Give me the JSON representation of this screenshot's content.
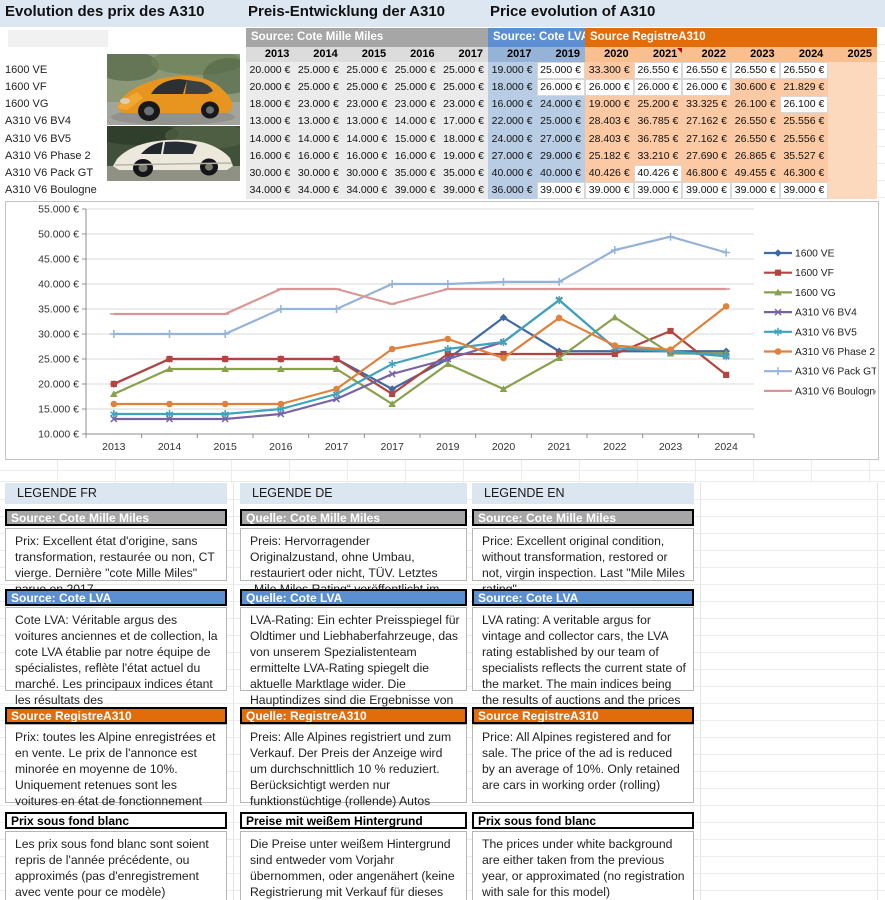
{
  "titles": {
    "fr": "Evolution des prix des A310",
    "de": "Preis-Entwicklung der A310",
    "en": "Price evolution of A310"
  },
  "colors": {
    "title_bar_bg": "#dde7f2",
    "mille_header": "#a6a6a6",
    "mille_year": "#dcdcdc",
    "mille_cell": "#ebebeb",
    "lva_header": "#5c8fd2",
    "lva_year": "#95b3d7",
    "lva_cell": "#b8cce4",
    "registre_header": "#e26b0a",
    "registre_year": "#fabf8f",
    "registre_cell": "#fbc9a3",
    "registre_empty_cell": "#fcd8bd",
    "white_cell": "#ffffff",
    "comment_marker": "#c00000"
  },
  "table": {
    "comment_marker_year": "2021",
    "sections": [
      {
        "id": "mille",
        "label": "Source: Cote Mille Miles",
        "years": [
          "2013",
          "2014",
          "2015",
          "2016",
          "2017"
        ]
      },
      {
        "id": "lva",
        "label": "Source: Cote LVA",
        "years": [
          "2017",
          "2019"
        ]
      },
      {
        "id": "registre",
        "label": "Source RegistreA310",
        "years": [
          "2020",
          "2021",
          "2022",
          "2023",
          "2024",
          "2025"
        ]
      }
    ],
    "rows": [
      {
        "model": "1600 VE",
        "mille": [
          "20.000 €",
          "25.000 €",
          "25.000 €",
          "25.000 €",
          "25.000 €"
        ],
        "lva": [
          "19.000 €",
          "25.000 €"
        ],
        "lva_white": [
          0,
          1
        ],
        "registre": [
          "33.300 €",
          "26.550 €",
          "26.550 €",
          "26.550 €",
          "26.550 €",
          ""
        ],
        "registre_white": [
          0,
          1,
          1,
          1,
          1,
          0
        ]
      },
      {
        "model": "1600 VF",
        "mille": [
          "20.000 €",
          "25.000 €",
          "25.000 €",
          "25.000 €",
          "25.000 €"
        ],
        "lva": [
          "18.000 €",
          "26.000 €"
        ],
        "lva_white": [
          0,
          1
        ],
        "registre": [
          "26.000 €",
          "26.000 €",
          "26.000 €",
          "30.600 €",
          "21.829 €",
          ""
        ],
        "registre_white": [
          1,
          1,
          1,
          0,
          0,
          0
        ]
      },
      {
        "model": "1600 VG",
        "mille": [
          "18.000 €",
          "23.000 €",
          "23.000 €",
          "23.000 €",
          "23.000 €"
        ],
        "lva": [
          "16.000 €",
          "24.000 €"
        ],
        "lva_white": [
          0,
          0
        ],
        "registre": [
          "19.000 €",
          "25.200 €",
          "33.325 €",
          "26.100 €",
          "26.100 €",
          ""
        ],
        "registre_white": [
          0,
          0,
          0,
          0,
          1,
          0
        ]
      },
      {
        "model": "A310 V6 BV4",
        "mille": [
          "13.000 €",
          "13.000 €",
          "13.000 €",
          "14.000 €",
          "17.000 €"
        ],
        "lva": [
          "22.000 €",
          "25.000 €"
        ],
        "lva_white": [
          0,
          0
        ],
        "registre": [
          "28.403 €",
          "36.785 €",
          "27.162 €",
          "26.550 €",
          "25.556 €",
          ""
        ],
        "registre_white": [
          0,
          0,
          0,
          0,
          0,
          0
        ]
      },
      {
        "model": "A310 V6 BV5",
        "mille": [
          "14.000 €",
          "14.000 €",
          "14.000 €",
          "15.000 €",
          "18.000 €"
        ],
        "lva": [
          "24.000 €",
          "27.000 €"
        ],
        "lva_white": [
          0,
          0
        ],
        "registre": [
          "28.403 €",
          "36.785 €",
          "27.162 €",
          "26.550 €",
          "25.556 €",
          ""
        ],
        "registre_white": [
          0,
          0,
          0,
          0,
          0,
          0
        ]
      },
      {
        "model": "A310 V6 Phase 2",
        "mille": [
          "16.000 €",
          "16.000 €",
          "16.000 €",
          "16.000 €",
          "19.000 €"
        ],
        "lva": [
          "27.000 €",
          "29.000 €"
        ],
        "lva_white": [
          0,
          0
        ],
        "registre": [
          "25.182 €",
          "33.210 €",
          "27.690 €",
          "26.865 €",
          "35.527 €",
          ""
        ],
        "registre_white": [
          0,
          0,
          0,
          0,
          0,
          0
        ]
      },
      {
        "model": "A310 V6 Pack GT",
        "mille": [
          "30.000 €",
          "30.000 €",
          "30.000 €",
          "35.000 €",
          "35.000 €"
        ],
        "lva": [
          "40.000 €",
          "40.000 €"
        ],
        "lva_white": [
          0,
          0
        ],
        "registre": [
          "40.426 €",
          "40.426 €",
          "46.800 €",
          "49.455 €",
          "46.300 €",
          ""
        ],
        "registre_white": [
          0,
          1,
          0,
          0,
          0,
          0
        ]
      },
      {
        "model": "A310 V6 Boulogne",
        "mille": [
          "34.000 €",
          "34.000 €",
          "34.000 €",
          "39.000 €",
          "39.000 €"
        ],
        "lva": [
          "36.000 €",
          "39.000 €"
        ],
        "lva_white": [
          0,
          1
        ],
        "registre": [
          "39.000 €",
          "39.000 €",
          "39.000 €",
          "39.000 €",
          "39.000 €",
          ""
        ],
        "registre_white": [
          1,
          1,
          1,
          1,
          1,
          0
        ]
      }
    ]
  },
  "chart_data": {
    "type": "line",
    "x": [
      "2013",
      "2014",
      "2015",
      "2016",
      "2017",
      "2017",
      "2019",
      "2020",
      "2021",
      "2022",
      "2023",
      "2024"
    ],
    "ylim": [
      10000,
      55000
    ],
    "ytick_step": 5000,
    "ytick_format": "#.000 €",
    "grid": true,
    "legend_position": "right",
    "series": [
      {
        "name": "1600 VE",
        "color": "#4169a4",
        "marker": "diamond",
        "values": [
          20000,
          25000,
          25000,
          25000,
          25000,
          19000,
          25000,
          33300,
          26550,
          26550,
          26550,
          26550
        ]
      },
      {
        "name": "1600 VF",
        "color": "#b2453f",
        "marker": "square",
        "values": [
          20000,
          25000,
          25000,
          25000,
          25000,
          18000,
          26000,
          26000,
          26000,
          26000,
          30600,
          21829
        ]
      },
      {
        "name": "1600 VG",
        "color": "#89a04c",
        "marker": "triangle",
        "values": [
          18000,
          23000,
          23000,
          23000,
          23000,
          16000,
          24000,
          19000,
          25200,
          33325,
          26100,
          26100
        ]
      },
      {
        "name": "A310 V6 BV4",
        "color": "#7862a4",
        "marker": "x",
        "values": [
          13000,
          13000,
          13000,
          14000,
          17000,
          22000,
          25000,
          28403,
          36785,
          27162,
          26550,
          25556
        ]
      },
      {
        "name": "A310 V6 BV5",
        "color": "#3ea3bd",
        "marker": "asterisk",
        "values": [
          14000,
          14000,
          14000,
          15000,
          18000,
          24000,
          27000,
          28403,
          36785,
          27162,
          26550,
          25556
        ]
      },
      {
        "name": "A310 V6 Phase 2",
        "color": "#e0813d",
        "marker": "circle",
        "values": [
          16000,
          16000,
          16000,
          16000,
          19000,
          27000,
          29000,
          25182,
          33210,
          27690,
          26865,
          35527
        ]
      },
      {
        "name": "A310 V6 Pack GT",
        "color": "#95b3d7",
        "marker": "plus",
        "values": [
          30000,
          30000,
          30000,
          35000,
          35000,
          40000,
          40000,
          40426,
          40426,
          46800,
          49455,
          46300
        ]
      },
      {
        "name": "A310 V6 Boulogne",
        "color": "#d99694",
        "marker": "dash",
        "values": [
          34000,
          34000,
          34000,
          39000,
          39000,
          36000,
          39000,
          39000,
          39000,
          39000,
          39000,
          39000
        ]
      }
    ]
  },
  "legends": [
    {
      "title": "LEGENDE FR",
      "blocks": [
        {
          "type": "gray",
          "header": "Source: Cote Mille Miles",
          "text": "Prix: Excellent état d'origine, sans transformation, restaurée ou non, CT vierge. Dernière \"cote Mille Miles\" parue en 2017"
        },
        {
          "type": "blue",
          "header": "Source: Cote LVA",
          "text": "Cote LVA: Véritable argus des voitures anciennes et de collection, la cote LVA établie par notre équipe de spécialistes, reflète l'état actuel du marché. Les principaux indices étant les résultats des"
        },
        {
          "type": "orange",
          "header": "Source RegistreA310",
          "text": "Prix: toutes les Alpine enregistrées et en vente. Le prix de l'annonce est minorée en moyenne de 10%. Uniquement retenues sont les voitures en état de fonctionnement (roulantes)"
        },
        {
          "type": "white",
          "header": "Prix sous fond blanc",
          "text": "Les prix sous fond blanc sont soient repris de l'année précédente, ou approximés (pas d'enregistrement avec vente pour ce modèle)"
        }
      ]
    },
    {
      "title": "LEGENDE DE",
      "blocks": [
        {
          "type": "gray",
          "header": "Quelle: Cote Mille Miles",
          "text": "Preis: Hervorragender Originalzustand, ohne Umbau, restauriert oder nicht, TÜV. Letztes „Mile Miles Rating“ veröffentlicht im"
        },
        {
          "type": "blue",
          "header": "Quelle: Cote LVA",
          "text": "LVA-Rating: Ein echter Preisspiegel für Oldtimer und Liebhaberfahrzeuge, das von unserem Spezialistenteam ermittelte LVA-Rating spiegelt die aktuelle Marktlage wider. Die Hauptindizes sind die Ergebnisse von"
        },
        {
          "type": "orange",
          "header": "Quelle: RegistreA310",
          "text": "Preis: Alle Alpines registriert und zum Verkauf. Der Preis der Anzeige wird um durchschnittlich 10 % reduziert. Berücksichtigt werden nur funktionstüchtige (rollende) Autos"
        },
        {
          "type": "white",
          "header": "Preise mit weißem Hintergrund",
          "text": "Die Preise unter weißem Hintergrund sind entweder vom Vorjahr übernommen, oder angenähert (keine Registrierung mit Verkauf für dieses Modell)"
        }
      ]
    },
    {
      "title": "LEGENDE EN",
      "blocks": [
        {
          "type": "gray",
          "header": "Source: Cote Mille Miles",
          "text": "Price: Excellent original condition, without transformation, restored or not, virgin inspection. Last \"Mile Miles rating\""
        },
        {
          "type": "blue",
          "header": "Source: Cote LVA",
          "text": "LVA rating: A veritable argus for vintage and collector cars, the LVA rating established by our team of specialists reflects the current state of the market. The main indices being the results of auctions and the prices"
        },
        {
          "type": "orange",
          "header": "Source RegistreA310",
          "text": "Price: All Alpines registered and for sale. The price of the ad is reduced by an average of 10%. Only retained are cars in working order (rolling)"
        },
        {
          "type": "white",
          "header": "Prix sous fond blanc",
          "text": "The prices under white background are either taken from the previous year, or approximated (no registration with sale for this model)"
        }
      ]
    }
  ]
}
